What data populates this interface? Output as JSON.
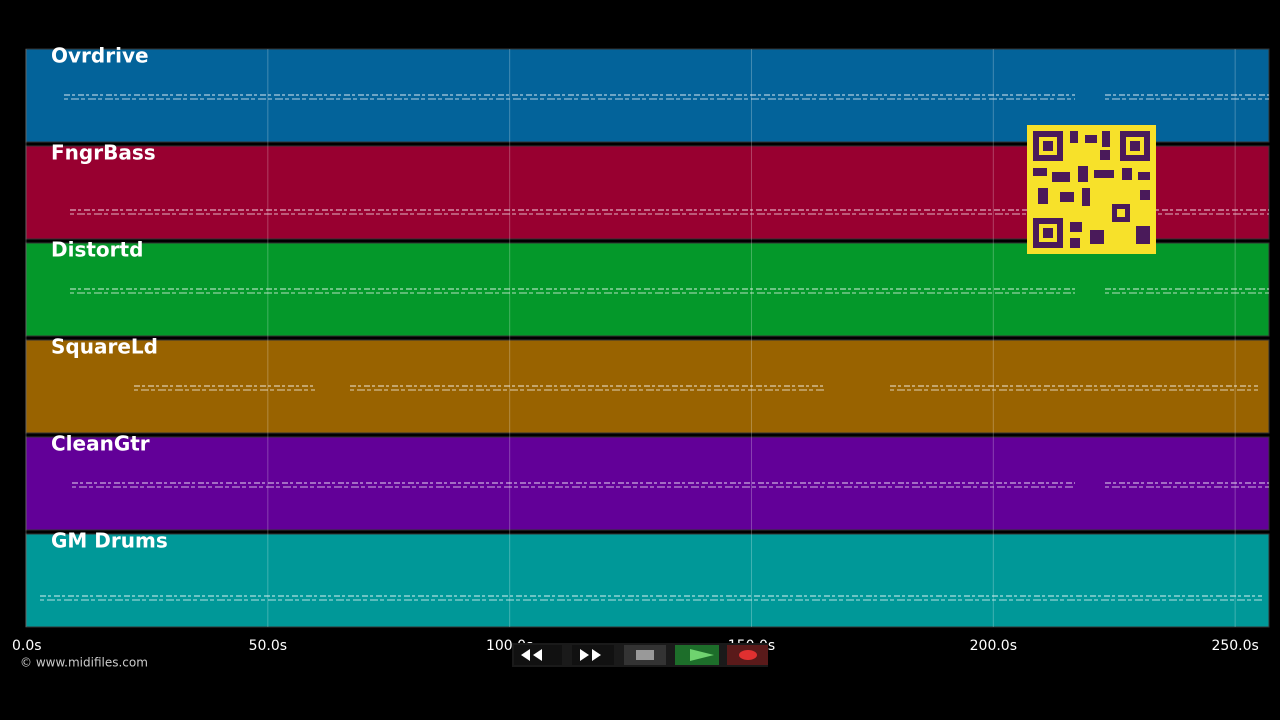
{
  "tracks": [
    {
      "name": "Ovrdrive",
      "color": "#03639a"
    },
    {
      "name": "FngrBass",
      "color": "#980030"
    },
    {
      "name": "Distortd",
      "color": "#04982a"
    },
    {
      "name": "SquareLd",
      "color": "#996300"
    },
    {
      "name": "CleanGtr",
      "color": "#620098"
    },
    {
      "name": "GM Drums",
      "color": "#009898"
    }
  ],
  "time_axis": {
    "xlim": [
      0,
      257
    ],
    "ticks": [
      {
        "value": 0,
        "label": "0.0s"
      },
      {
        "value": 50,
        "label": "50.0s"
      },
      {
        "value": 100,
        "label": "100.0s"
      },
      {
        "value": 150,
        "label": "150.0s"
      },
      {
        "value": 200,
        "label": "200.0s"
      },
      {
        "value": 250,
        "label": "250.0s"
      }
    ]
  },
  "footer": {
    "copyright": "© www.midifiles.com"
  }
}
